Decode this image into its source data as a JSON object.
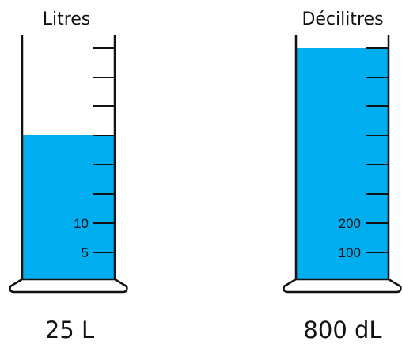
{
  "colors": {
    "liquid": "#00aeef",
    "outline": "#111111"
  },
  "cylinders": [
    {
      "title": "Litres",
      "tick_count": 8,
      "ticks_per_label": 5,
      "visible_labels": [
        "5",
        "10"
      ],
      "fill_level": 25,
      "answer": "25 L"
    },
    {
      "title": "Décilitres",
      "tick_count": 8,
      "visible_labels": [
        "100",
        "200"
      ],
      "ticks_per_label": 100,
      "fill_level": 800,
      "answer": "800 dL"
    }
  ]
}
